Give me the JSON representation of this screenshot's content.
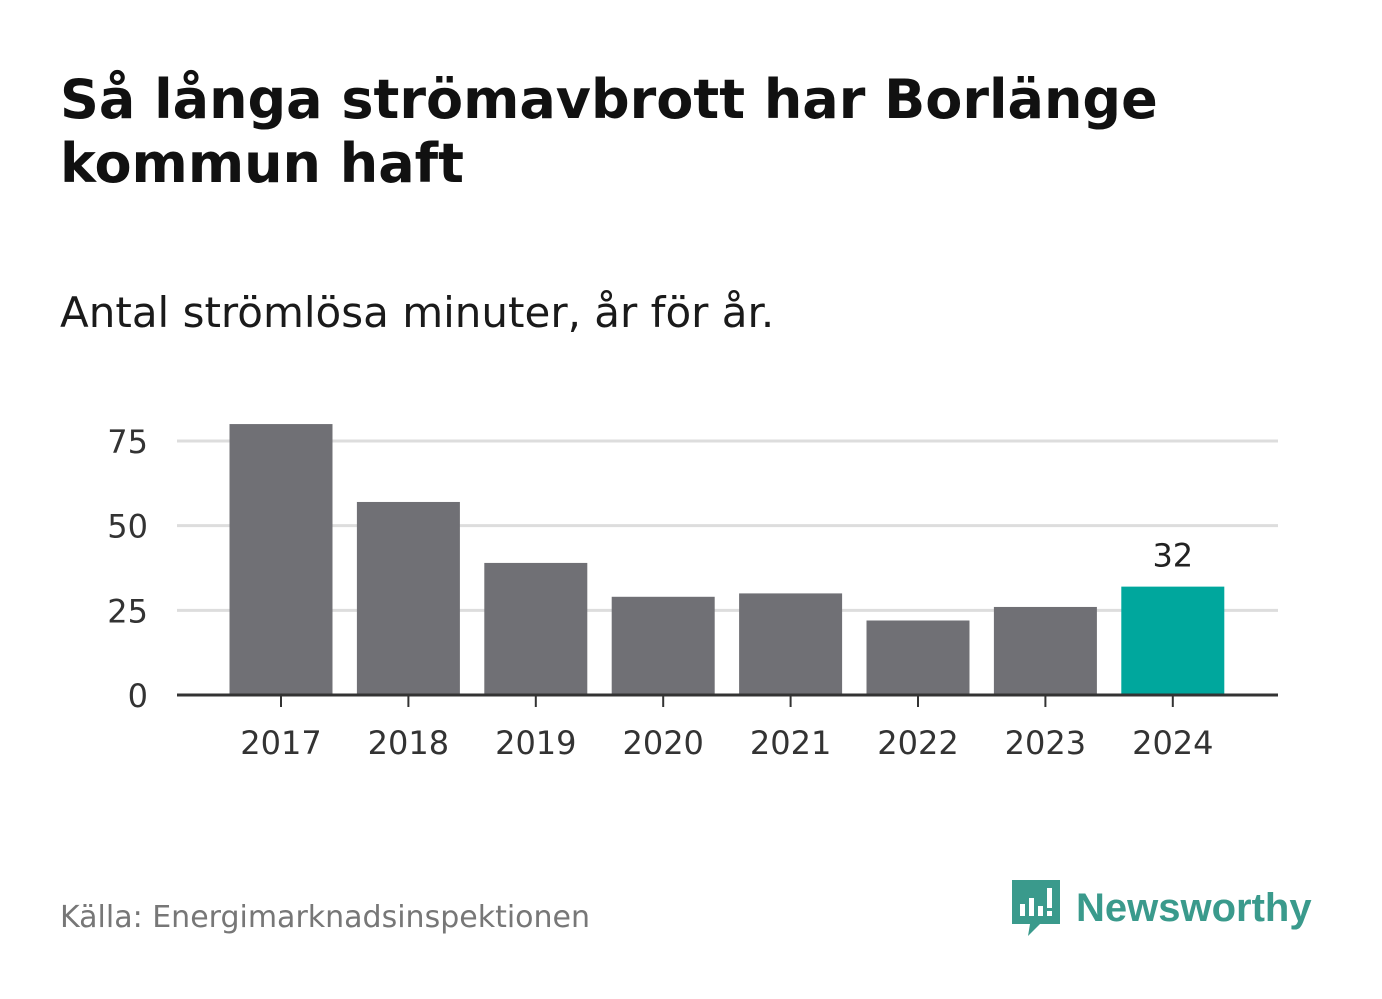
{
  "chart_data": {
    "type": "bar",
    "title": "Så långa strömavbrott har Borlänge kommun haft",
    "subtitle": "Antal strömlösa minuter, år för år.",
    "categories": [
      "2017",
      "2018",
      "2019",
      "2020",
      "2021",
      "2022",
      "2023",
      "2024"
    ],
    "values": [
      80,
      57,
      39,
      29,
      30,
      22,
      26,
      32
    ],
    "highlight_index": 7,
    "highlight_label": "32",
    "yticks": [
      "0",
      "25",
      "50",
      "75"
    ],
    "ylim": [
      0,
      80
    ],
    "xlabel": "",
    "ylabel": "",
    "colors": {
      "bar": "#707075",
      "highlight": "#00a79d",
      "grid": "#dddddd",
      "axis": "#333333"
    }
  },
  "source": "Källa: Energimarknadsinspektionen",
  "brand": {
    "name": "Newsworthy",
    "icon": "newsworthy-logo-icon",
    "color": "#3a9a8c"
  }
}
